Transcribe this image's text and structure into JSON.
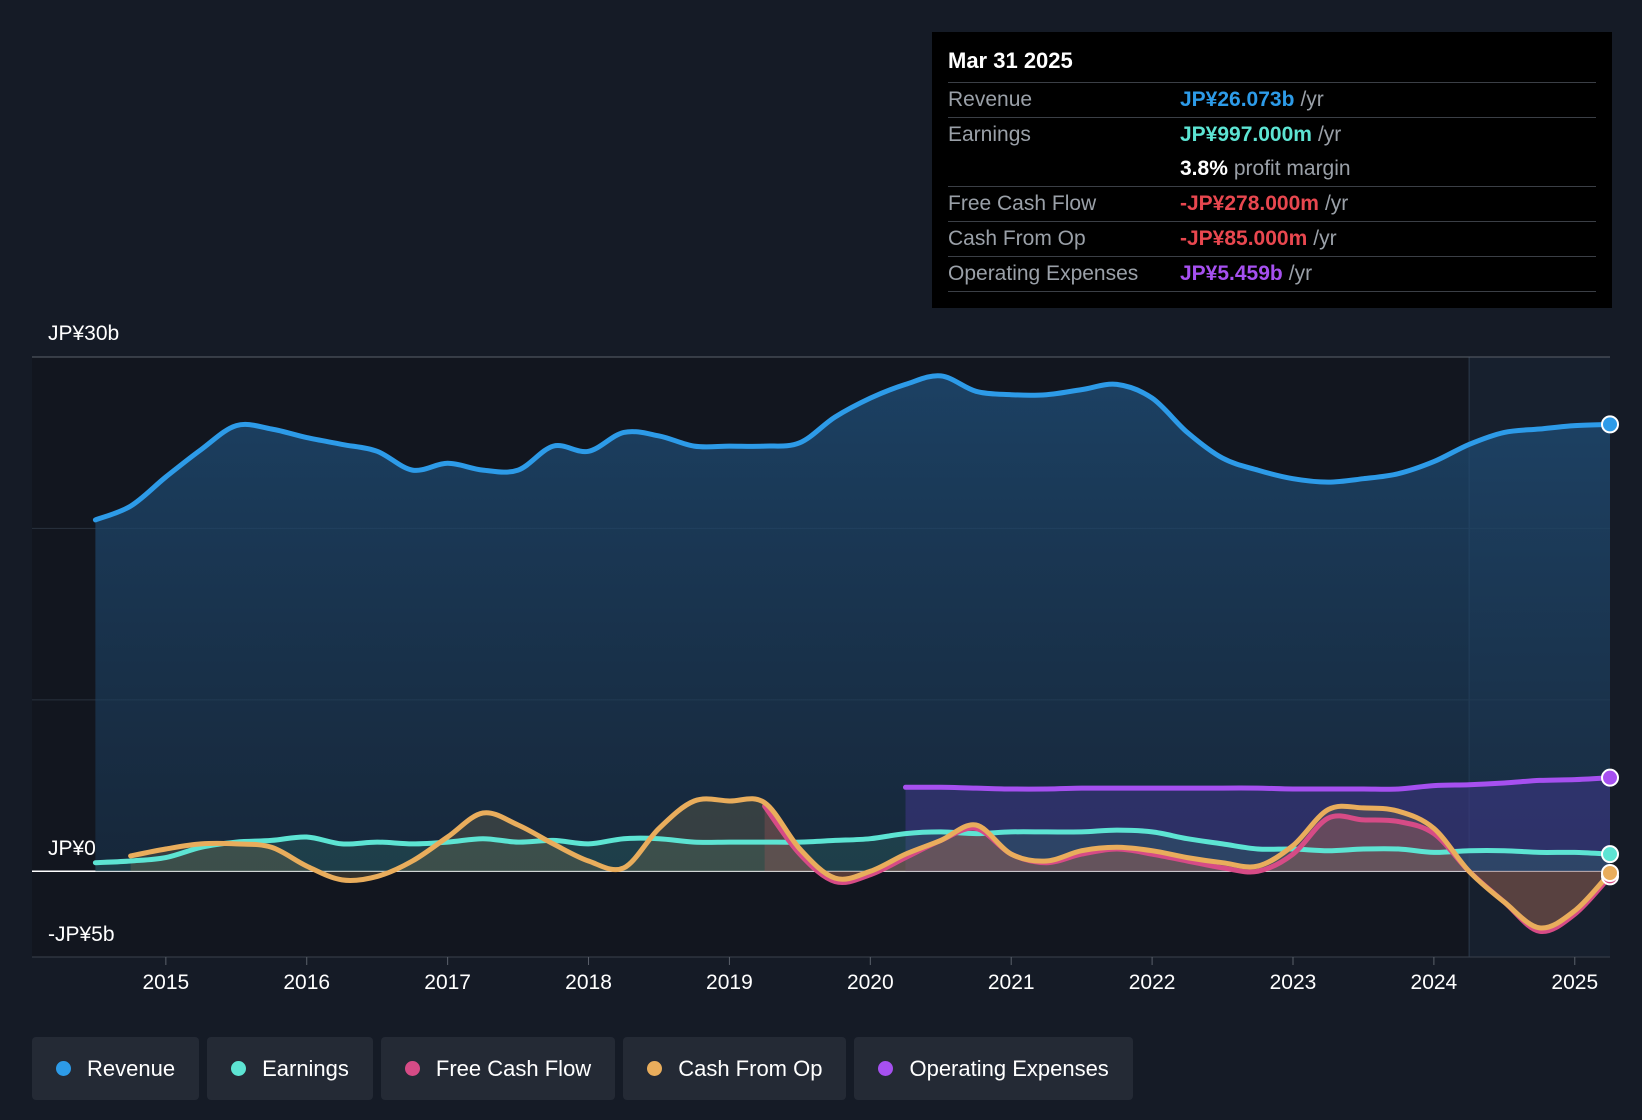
{
  "tooltip": {
    "date": "Mar 31 2025",
    "rows": [
      {
        "label": "Revenue",
        "value": "JP¥26.073b",
        "unit": "/yr",
        "color": "#2d9be8"
      },
      {
        "label": "Earnings",
        "value": "JP¥997.000m",
        "unit": "/yr",
        "color": "#5de4d3"
      },
      {
        "label": "",
        "value": "3.8%",
        "unit": "profit margin",
        "color": "#ffffff"
      },
      {
        "label": "Free Cash Flow",
        "value": "-JP¥278.000m",
        "unit": "/yr",
        "color": "#e8474f"
      },
      {
        "label": "Cash From Op",
        "value": "-JP¥85.000m",
        "unit": "/yr",
        "color": "#e8474f"
      },
      {
        "label": "Operating Expenses",
        "value": "JP¥5.459b",
        "unit": "/yr",
        "color": "#a650f0"
      }
    ]
  },
  "legend": [
    {
      "label": "Revenue",
      "color": "#2d9be8"
    },
    {
      "label": "Earnings",
      "color": "#5de4d3"
    },
    {
      "label": "Free Cash Flow",
      "color": "#d64b86"
    },
    {
      "label": "Cash From Op",
      "color": "#e9ad5c"
    },
    {
      "label": "Operating Expenses",
      "color": "#a650f0"
    }
  ],
  "chart_data": {
    "type": "area",
    "title": "",
    "xlabel": "",
    "ylabel": "",
    "ylim": [
      -5,
      30
    ],
    "y_tick_labels": [
      "JP¥30b",
      "JP¥0",
      "-JP¥5b"
    ],
    "x_tick_labels": [
      "2015",
      "2016",
      "2017",
      "2018",
      "2019",
      "2020",
      "2021",
      "2022",
      "2023",
      "2024",
      "2025"
    ],
    "x_range": [
      2014.05,
      2025.25
    ],
    "highlight_start": 2024.25,
    "unit": "JP¥ billions",
    "series": [
      {
        "name": "Revenue",
        "color": "#2d9be8",
        "x": [
          2014.5,
          2014.75,
          2015.0,
          2015.25,
          2015.5,
          2015.75,
          2016.0,
          2016.25,
          2016.5,
          2016.75,
          2017.0,
          2017.25,
          2017.5,
          2017.75,
          2018.0,
          2018.25,
          2018.5,
          2018.75,
          2019.0,
          2019.25,
          2019.5,
          2019.75,
          2020.0,
          2020.25,
          2020.5,
          2020.75,
          2021.0,
          2021.25,
          2021.5,
          2021.75,
          2022.0,
          2022.25,
          2022.5,
          2022.75,
          2023.0,
          2023.25,
          2023.5,
          2023.75,
          2024.0,
          2024.25,
          2024.5,
          2024.75,
          2025.0,
          2025.25
        ],
        "values": [
          20.5,
          21.3,
          23.0,
          24.6,
          26.0,
          25.8,
          25.3,
          24.9,
          24.5,
          23.4,
          23.8,
          23.4,
          23.4,
          24.8,
          24.5,
          25.6,
          25.4,
          24.8,
          24.8,
          24.8,
          25.0,
          26.5,
          27.6,
          28.4,
          28.9,
          28.0,
          27.8,
          27.8,
          28.1,
          28.4,
          27.6,
          25.6,
          24.1,
          23.4,
          22.9,
          22.7,
          22.9,
          23.2,
          23.9,
          24.9,
          25.6,
          25.8,
          26.0,
          26.07
        ]
      },
      {
        "name": "Earnings",
        "color": "#5de4d3",
        "x": [
          2014.5,
          2014.75,
          2015.0,
          2015.25,
          2015.5,
          2015.75,
          2016.0,
          2016.25,
          2016.5,
          2016.75,
          2017.0,
          2017.25,
          2017.5,
          2017.75,
          2018.0,
          2018.25,
          2018.5,
          2018.75,
          2019.0,
          2019.25,
          2019.5,
          2019.75,
          2020.0,
          2020.25,
          2020.5,
          2020.75,
          2021.0,
          2021.25,
          2021.5,
          2021.75,
          2022.0,
          2022.25,
          2022.5,
          2022.75,
          2023.0,
          2023.25,
          2023.5,
          2023.75,
          2024.0,
          2024.25,
          2024.5,
          2024.75,
          2025.0,
          2025.25
        ],
        "values": [
          0.5,
          0.6,
          0.8,
          1.4,
          1.7,
          1.8,
          2.0,
          1.6,
          1.7,
          1.6,
          1.7,
          1.9,
          1.7,
          1.8,
          1.6,
          1.9,
          1.9,
          1.7,
          1.7,
          1.7,
          1.7,
          1.8,
          1.9,
          2.2,
          2.3,
          2.2,
          2.3,
          2.3,
          2.3,
          2.4,
          2.3,
          1.9,
          1.6,
          1.3,
          1.3,
          1.2,
          1.3,
          1.3,
          1.1,
          1.2,
          1.2,
          1.1,
          1.1,
          1.0
        ]
      },
      {
        "name": "Free Cash Flow",
        "color": "#d64b86",
        "x": [
          2019.25,
          2019.5,
          2019.75,
          2020.0,
          2020.25,
          2020.5,
          2020.75,
          2021.0,
          2021.25,
          2021.5,
          2021.75,
          2022.0,
          2022.25,
          2022.5,
          2022.75,
          2023.0,
          2023.25,
          2023.5,
          2023.75,
          2024.0,
          2024.25,
          2024.5,
          2024.75,
          2025.0,
          2025.25
        ],
        "values": [
          3.8,
          1.0,
          -0.6,
          -0.2,
          0.8,
          1.8,
          2.5,
          1.0,
          0.5,
          1.0,
          1.3,
          1.0,
          0.6,
          0.2,
          0.0,
          1.0,
          3.1,
          3.0,
          2.9,
          2.2,
          0.0,
          -1.8,
          -3.5,
          -2.5,
          -0.3
        ]
      },
      {
        "name": "Cash From Op",
        "color": "#e9ad5c",
        "x": [
          2014.75,
          2015.0,
          2015.25,
          2015.5,
          2015.75,
          2016.0,
          2016.25,
          2016.5,
          2016.75,
          2017.0,
          2017.25,
          2017.5,
          2017.75,
          2018.0,
          2018.25,
          2018.5,
          2018.75,
          2019.0,
          2019.25,
          2019.5,
          2019.75,
          2020.0,
          2020.25,
          2020.5,
          2020.75,
          2021.0,
          2021.25,
          2021.5,
          2021.75,
          2022.0,
          2022.25,
          2022.5,
          2022.75,
          2023.0,
          2023.25,
          2023.5,
          2023.75,
          2024.0,
          2024.25,
          2024.5,
          2024.75,
          2025.0,
          2025.25
        ],
        "values": [
          0.9,
          1.3,
          1.6,
          1.6,
          1.4,
          0.3,
          -0.5,
          -0.3,
          0.6,
          2.0,
          3.4,
          2.7,
          1.6,
          0.6,
          0.2,
          2.5,
          4.1,
          4.1,
          4.0,
          1.3,
          -0.4,
          0.0,
          1.0,
          1.8,
          2.7,
          1.0,
          0.6,
          1.2,
          1.4,
          1.2,
          0.8,
          0.5,
          0.3,
          1.5,
          3.6,
          3.7,
          3.5,
          2.5,
          0.0,
          -1.8,
          -3.3,
          -2.3,
          -0.1
        ]
      },
      {
        "name": "Operating Expenses",
        "color": "#a650f0",
        "x": [
          2020.25,
          2020.5,
          2020.75,
          2021.0,
          2021.25,
          2021.5,
          2021.75,
          2022.0,
          2022.25,
          2022.5,
          2022.75,
          2023.0,
          2023.25,
          2023.5,
          2023.75,
          2024.0,
          2024.25,
          2024.5,
          2024.75,
          2025.0,
          2025.25
        ],
        "values": [
          4.9,
          4.9,
          4.85,
          4.8,
          4.8,
          4.85,
          4.85,
          4.85,
          4.85,
          4.85,
          4.85,
          4.8,
          4.8,
          4.8,
          4.8,
          5.0,
          5.05,
          5.15,
          5.3,
          5.35,
          5.46
        ]
      }
    ]
  }
}
